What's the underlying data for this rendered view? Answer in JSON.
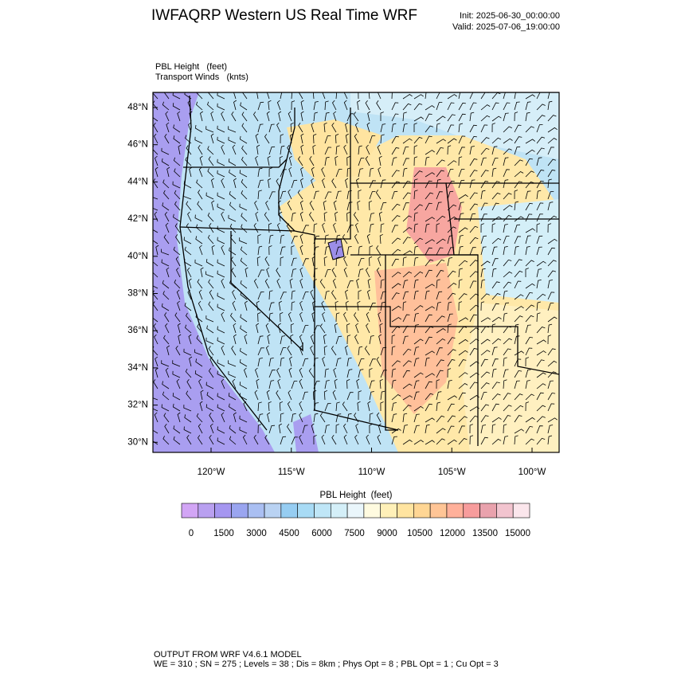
{
  "header": {
    "title": "IWFAQRP Western US Real Time WRF",
    "init": "Init: 2025-06-30_00:00:00",
    "valid": "Valid: 2025-07-06_19:00:00"
  },
  "map": {
    "field_label": "PBL Height   (feet)",
    "wind_label": "Transport Winds   (knts)",
    "lat_labels": [
      "48°N",
      "46°N",
      "44°N",
      "42°N",
      "40°N",
      "38°N",
      "36°N",
      "34°N",
      "32°N",
      "30°N"
    ],
    "lon_labels": [
      "120°W",
      "115°W",
      "110°W",
      "105°W",
      "100°W"
    ]
  },
  "colorbar": {
    "title": "PBL Height  (feet)",
    "labels": [
      0,
      1500,
      3000,
      4500,
      6000,
      7500,
      9000,
      10500,
      12000,
      13500,
      15000
    ],
    "colors": [
      "#d2a5f5",
      "#b9a0f0",
      "#a596f0",
      "#9aa5f0",
      "#aabff2",
      "#b9d2f2",
      "#96cdf2",
      "#a8dbf5",
      "#bfe6f7",
      "#d4eff8",
      "#eaf6fb",
      "#fffbe0",
      "#fff0b8",
      "#ffe4a0",
      "#ffd694",
      "#ffc596",
      "#ffb09a",
      "#f79c9c",
      "#e9a2ad",
      "#f2c4cf",
      "#fbe6ec"
    ]
  },
  "footer": {
    "line1": "OUTPUT FROM WRF V4.6.1 MODEL",
    "line2": "WE = 310 ; SN = 275 ; Levels = 38 ; Dis = 8km ; Phys Opt = 8 ; PBL Opt = 1 ; Cu Opt = 3"
  }
}
